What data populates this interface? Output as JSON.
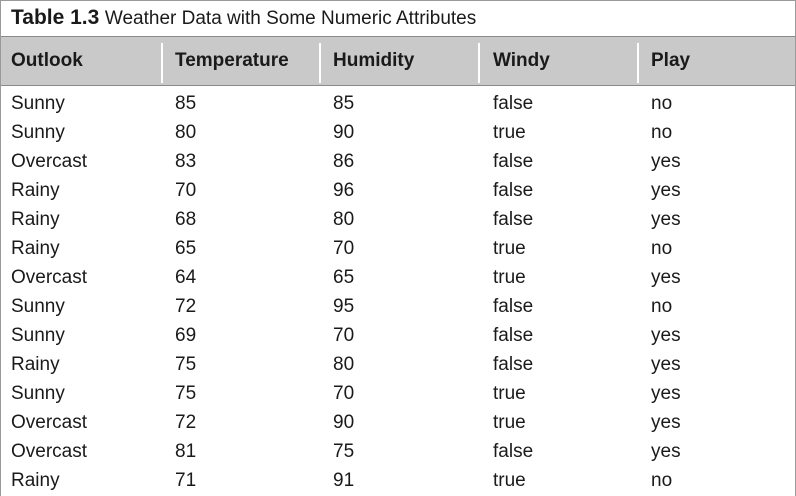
{
  "caption": {
    "label": "Table 1.3",
    "title": "Weather Data with Some Numeric Attributes"
  },
  "columns": [
    "Outlook",
    "Temperature",
    "Humidity",
    "Windy",
    "Play"
  ],
  "rows": [
    [
      "Sunny",
      "85",
      "85",
      "false",
      "no"
    ],
    [
      "Sunny",
      "80",
      "90",
      "true",
      "no"
    ],
    [
      "Overcast",
      "83",
      "86",
      "false",
      "yes"
    ],
    [
      "Rainy",
      "70",
      "96",
      "false",
      "yes"
    ],
    [
      "Rainy",
      "68",
      "80",
      "false",
      "yes"
    ],
    [
      "Rainy",
      "65",
      "70",
      "true",
      "no"
    ],
    [
      "Overcast",
      "64",
      "65",
      "true",
      "yes"
    ],
    [
      "Sunny",
      "72",
      "95",
      "false",
      "no"
    ],
    [
      "Sunny",
      "69",
      "70",
      "false",
      "yes"
    ],
    [
      "Rainy",
      "75",
      "80",
      "false",
      "yes"
    ],
    [
      "Sunny",
      "75",
      "70",
      "true",
      "yes"
    ],
    [
      "Overcast",
      "72",
      "90",
      "true",
      "yes"
    ],
    [
      "Overcast",
      "81",
      "75",
      "false",
      "yes"
    ],
    [
      "Rainy",
      "71",
      "91",
      "true",
      "no"
    ]
  ],
  "colors": {
    "header_background": "#c9c9c9",
    "text": "#1a1a1a",
    "border": "#9a9a9a"
  }
}
